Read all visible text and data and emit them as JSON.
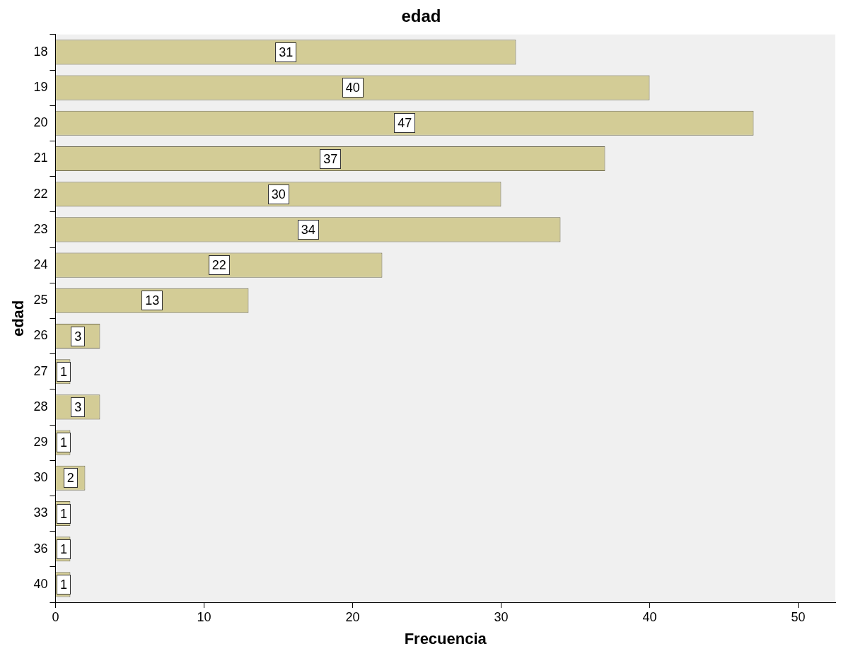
{
  "chart_data": {
    "type": "bar",
    "orientation": "horizontal",
    "title": "edad",
    "xlabel": "Frecuencia",
    "ylabel": "edad",
    "categories": [
      "18",
      "19",
      "20",
      "21",
      "22",
      "23",
      "24",
      "25",
      "26",
      "27",
      "28",
      "29",
      "30",
      "33",
      "36",
      "40"
    ],
    "values": [
      31,
      40,
      47,
      37,
      30,
      34,
      22,
      13,
      3,
      1,
      3,
      1,
      2,
      1,
      1,
      1
    ],
    "color": "#d3cc96",
    "xlim": [
      0,
      52.5
    ],
    "xticks": [
      0,
      10,
      20,
      30,
      40,
      50
    ],
    "grid": false,
    "legend": false,
    "data_labels": true
  }
}
